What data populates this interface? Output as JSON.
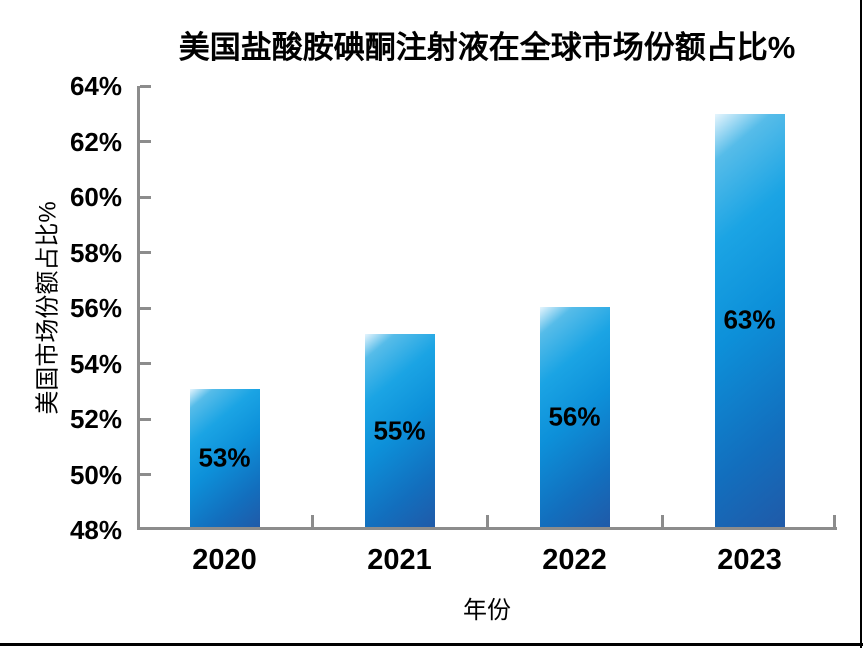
{
  "chart_data": {
    "type": "bar",
    "title": "美国盐酸胺碘酮注射液在全球市场份额占比%",
    "categories": [
      "2020",
      "2021",
      "2022",
      "2023"
    ],
    "values": [
      53,
      55,
      56,
      63
    ],
    "value_labels": [
      "53%",
      "55%",
      "56%",
      "63%"
    ],
    "xlabel": "年份",
    "ylabel": "美国市场份额占比%",
    "ylim": [
      48,
      64
    ],
    "ytick_step": 2,
    "ytick_labels": [
      "64%",
      "62%",
      "60%",
      "58%",
      "56%",
      "54%",
      "52%",
      "50%",
      "48%"
    ],
    "grid": false,
    "legend": "none",
    "value_label_position": "center-of-bar"
  },
  "colors": {
    "bar_highlight": "#e6f5fd",
    "bar_light_blue": "#1ba4e4",
    "bar_mid_blue": "#0d90d9",
    "bar_dark_blue": "#205aa8",
    "axis_line": "#8c8c8c",
    "text": "#000000",
    "background": "#ffffff",
    "border_rule": "#000000"
  }
}
